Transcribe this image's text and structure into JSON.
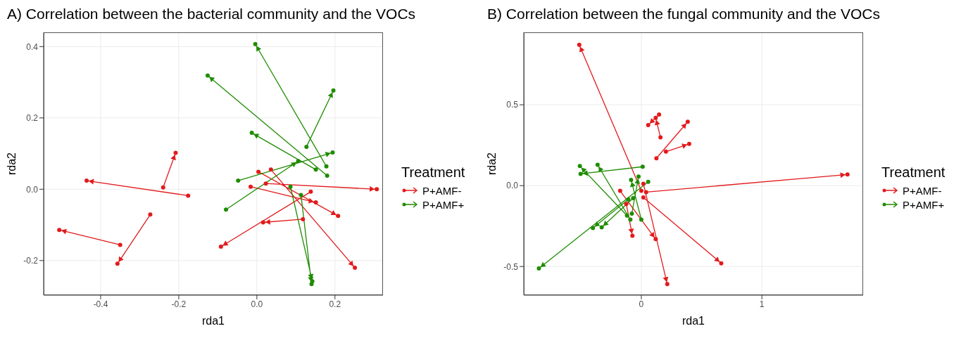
{
  "chart_data": [
    {
      "type": "line",
      "title": "A) Correlation between the bacterial community and the VOCs",
      "xlabel": "rda1",
      "ylabel": "rda2",
      "legend_title": "Treatment",
      "legend": "right",
      "grid": true,
      "marker": "circle",
      "line_style": "solid",
      "xlim": [
        -0.546,
        0.323
      ],
      "xticks": [
        -0.4,
        -0.2,
        {
          "value": 0,
          "label": "0.0"
        },
        0.2
      ],
      "ylim": [
        -0.297,
        0.44
      ],
      "yticks": [
        -0.2,
        {
          "value": 0,
          "label": "0.0"
        },
        0.2,
        0.4
      ],
      "series": [
        {
          "name": "P+AMF-",
          "color": "#e31a1c",
          "x": [
            -0.24,
            -0.208,
            null,
            -0.176,
            -0.436,
            null,
            -0.273,
            -0.357,
            null,
            -0.35,
            -0.506,
            null,
            0.004,
            0.208,
            null,
            0.036,
            0.251,
            null,
            0.023,
            0.307,
            null,
            -0.016,
            0.151,
            null,
            0.138,
            -0.092,
            null,
            0.118,
            0.016
          ],
          "values": [
            0.005,
            0.102,
            null,
            -0.018,
            0.024,
            null,
            -0.071,
            -0.209,
            null,
            -0.156,
            -0.114,
            null,
            0.049,
            -0.075,
            null,
            0.055,
            -0.22,
            null,
            0.016,
            0.0,
            null,
            0.007,
            -0.037,
            null,
            -0.007,
            -0.161,
            null,
            -0.084,
            -0.093
          ]
        },
        {
          "name": "P+AMF+",
          "color": "#1f8c00",
          "x": [
            0.178,
            -0.004,
            null,
            0.18,
            -0.126,
            null,
            0.127,
            0.196,
            null,
            0.151,
            -0.013,
            null,
            -0.048,
            0.194,
            null,
            -0.079,
            0.106,
            null,
            0.086,
            0.142,
            null,
            0.113,
            0.14
          ],
          "values": [
            0.064,
            0.407,
            null,
            0.038,
            0.319,
            null,
            0.119,
            0.277,
            null,
            0.055,
            0.158,
            null,
            0.024,
            0.103,
            null,
            -0.057,
            0.079,
            null,
            0.007,
            -0.258,
            null,
            -0.016,
            -0.266
          ]
        }
      ]
    },
    {
      "type": "line",
      "title": "B) Correlation between the fungal community and the VOCs",
      "xlabel": "rda1",
      "ylabel": "rda2",
      "legend_title": "Treatment",
      "legend": "right",
      "grid": true,
      "marker": "circle",
      "line_style": "solid",
      "xlim": [
        -0.975,
        1.84
      ],
      "xticks": [
        0,
        1
      ],
      "ylim": [
        -0.677,
        0.948
      ],
      "yticks": [
        -0.5,
        {
          "value": 0,
          "label": "0.0"
        },
        0.5
      ],
      "series": [
        {
          "name": "P+AMF-",
          "color": "#e31a1c",
          "x": [
            0,
            -0.515,
            null,
            0.04,
            1.71,
            null,
            0.017,
            0.663,
            null,
            0.017,
            0.215,
            null,
            -0.176,
            0.119,
            null,
            -0.125,
            -0.074,
            null,
            0.159,
            0.119,
            null,
            0.147,
            0.057,
            null,
            0.125,
            0.385,
            null,
            0.204,
            0.397
          ],
          "values": [
            -0.032,
            0.871,
            null,
            -0.04,
            0.069,
            null,
            -0.073,
            -0.48,
            null,
            0.012,
            -0.609,
            null,
            -0.032,
            -0.331,
            null,
            -0.113,
            -0.31,
            null,
            0.298,
            0.419,
            null,
            0.44,
            0.375,
            null,
            0.169,
            0.395,
            null,
            0.21,
            0.258
          ]
        },
        {
          "name": "P+AMF+",
          "color": "#1f8c00",
          "x": [
            0.011,
            -0.504,
            null,
            -0.119,
            -0.51,
            null,
            -0.091,
            -0.363,
            null,
            0,
            -0.085,
            null,
            -0.079,
            -0.023,
            null,
            0.057,
            -0.85,
            null,
            -0.108,
            -0.402,
            null,
            -0.068,
            -0.329
          ],
          "values": [
            0.117,
            0.073,
            null,
            -0.185,
            0.121,
            null,
            -0.21,
            0.129,
            null,
            -0.21,
            0.036,
            null,
            -0.173,
            0.056,
            null,
            0.024,
            -0.512,
            null,
            -0.085,
            -0.262,
            null,
            -0.077,
            -0.258
          ]
        }
      ]
    }
  ]
}
